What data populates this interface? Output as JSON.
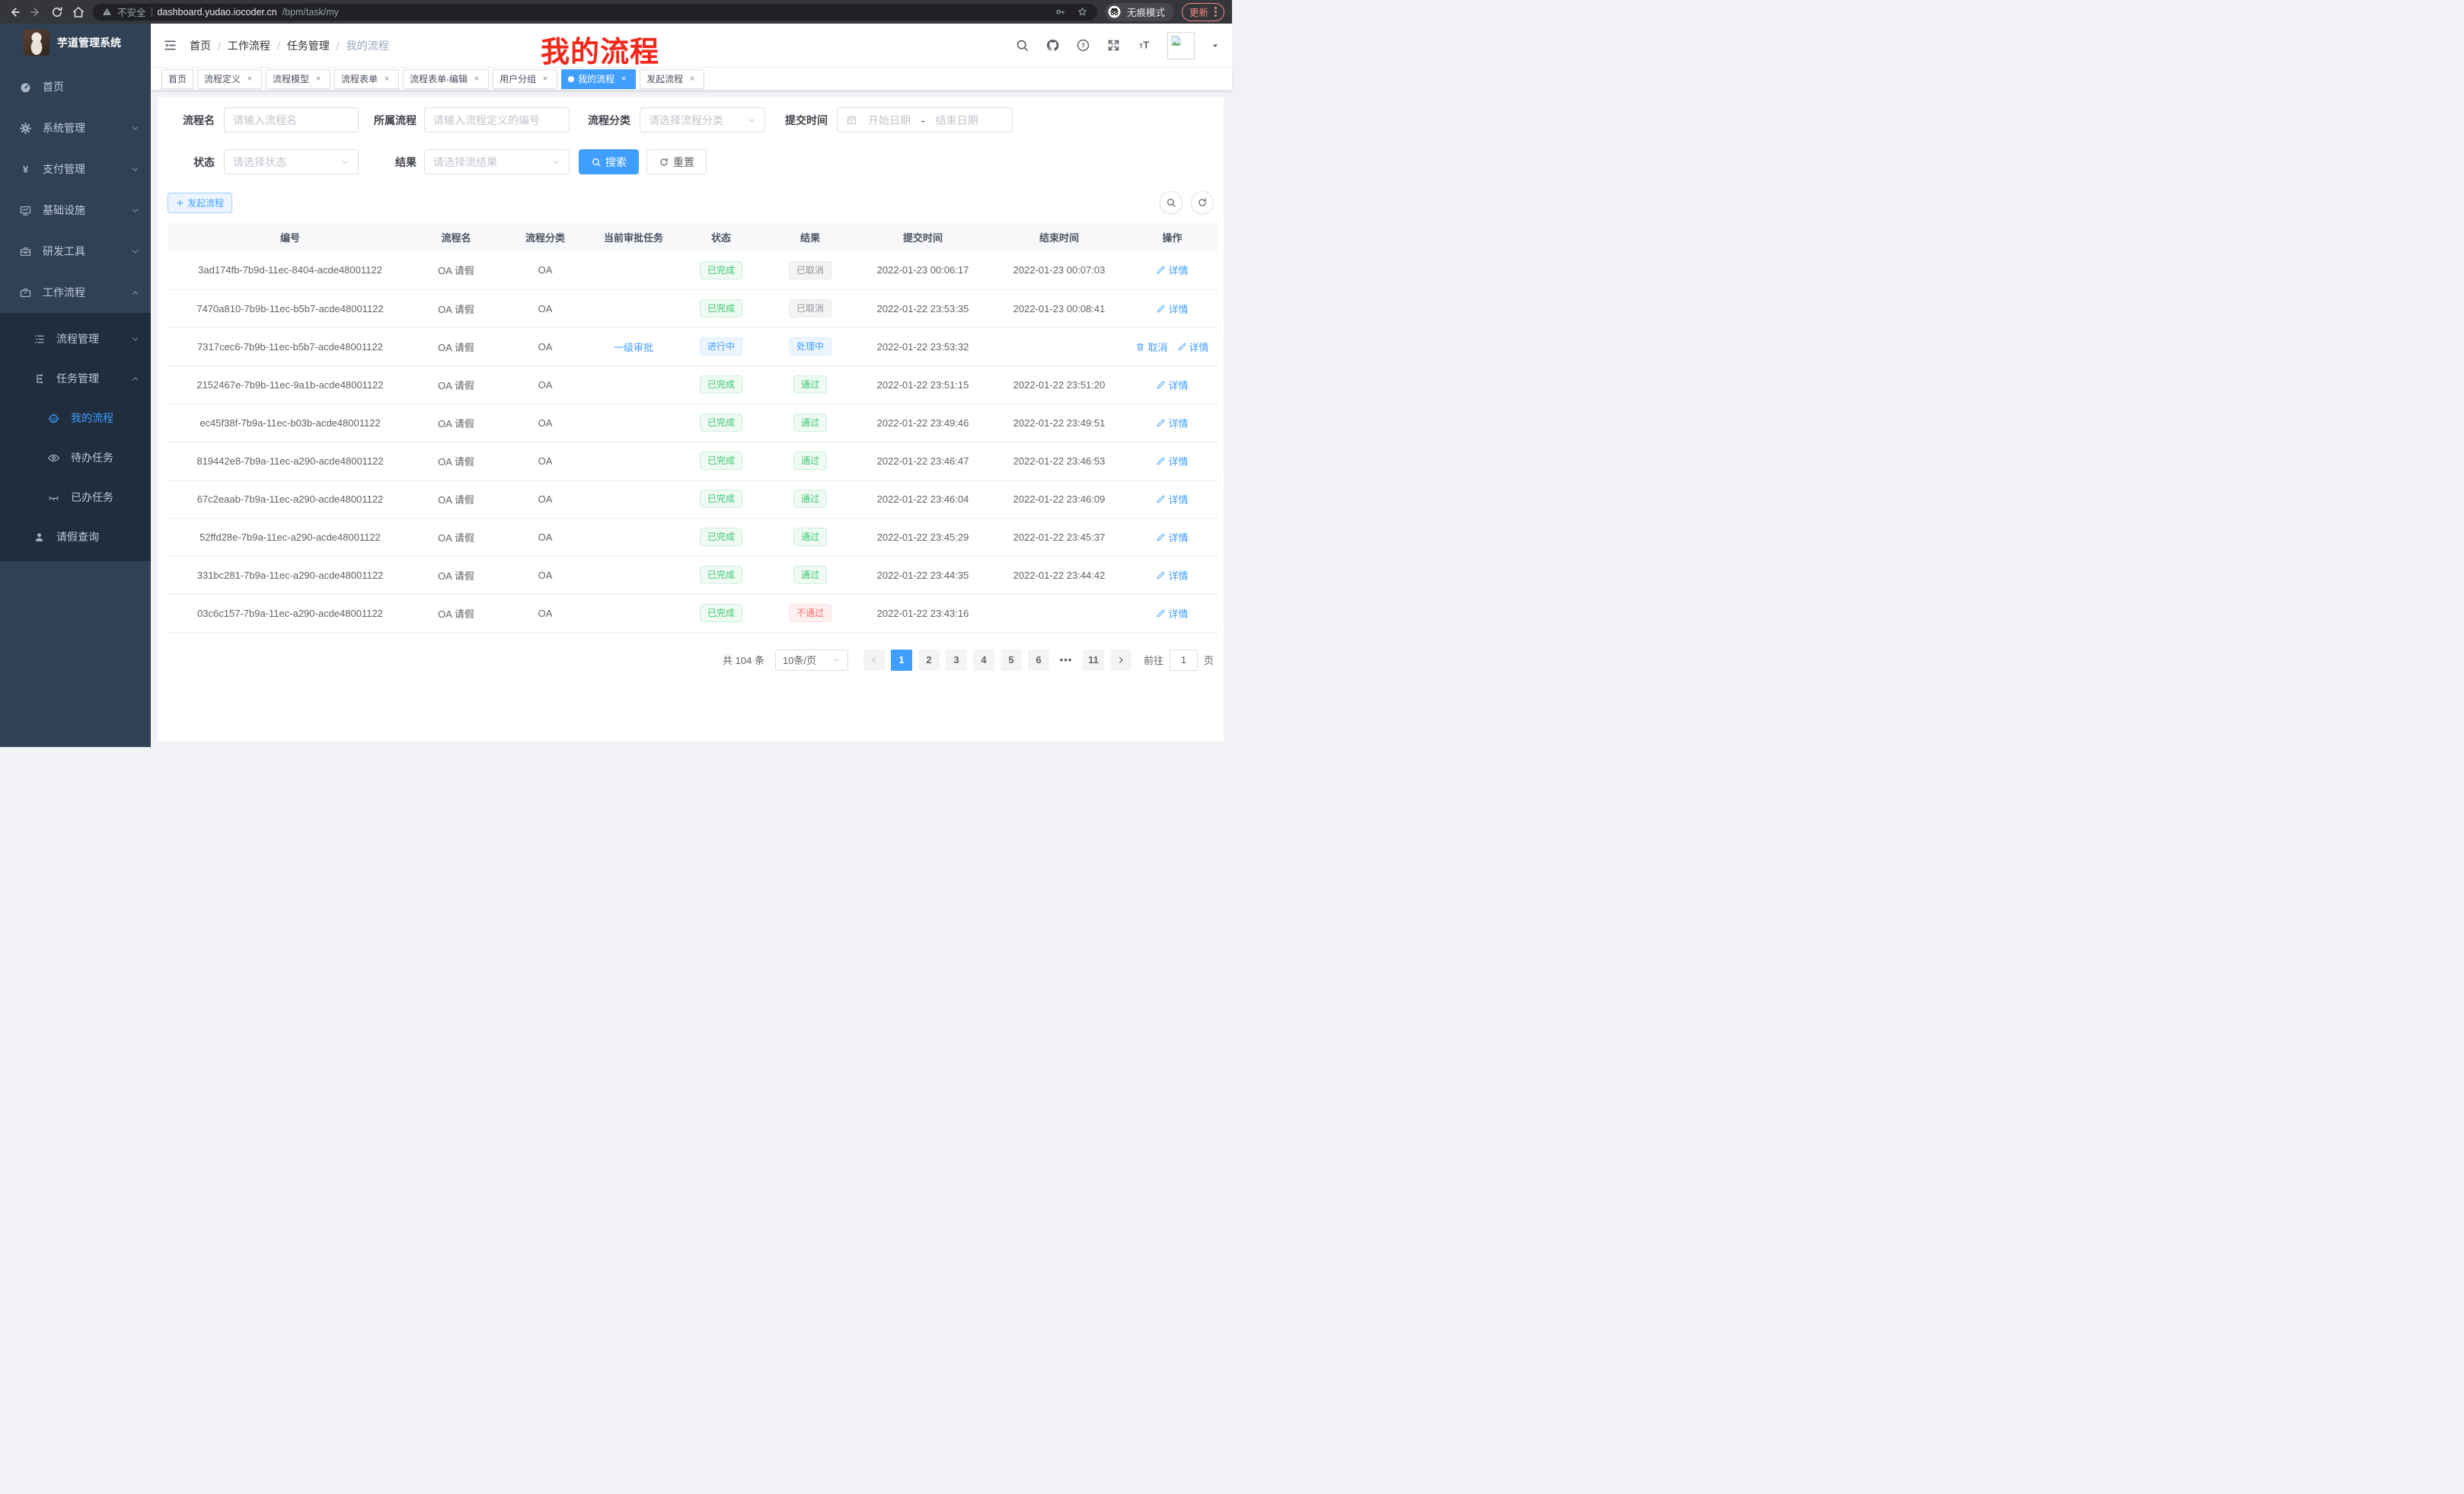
{
  "theme": {
    "primary": "#409eff",
    "success": "#3dc773",
    "danger": "#f56c6c",
    "info": "#909399",
    "sidebar_bg": "#304156",
    "submenu_bg": "#1f2d3d",
    "annotation_red": "#f4271b"
  },
  "browser": {
    "security_label": "不安全",
    "url_host": "dashboard.yudao.iocoder.cn",
    "url_path": "/bpm/task/my",
    "incognito_label": "无痕模式",
    "update_label": "更新"
  },
  "sidebar": {
    "app_title": "芋道管理系统",
    "menu": [
      {
        "label": "首页",
        "icon": "dashboard",
        "level": 0
      },
      {
        "label": "系统管理",
        "icon": "gear",
        "level": 0,
        "chevron": "down"
      },
      {
        "label": "支付管理",
        "icon": "yen",
        "level": 0,
        "chevron": "down"
      },
      {
        "label": "基础设施",
        "icon": "monitor",
        "level": 0,
        "chevron": "down"
      },
      {
        "label": "研发工具",
        "icon": "toolbox",
        "level": 0,
        "chevron": "down"
      },
      {
        "label": "工作流程",
        "icon": "briefcase",
        "level": 0,
        "chevron": "up"
      },
      {
        "label": "流程管理",
        "icon": "list",
        "level": 1,
        "dark": true,
        "chevron": "down"
      },
      {
        "label": "任务管理",
        "icon": "flow",
        "level": 1,
        "dark": true,
        "chevron": "up"
      },
      {
        "label": "我的流程",
        "icon": "robot",
        "level": 2,
        "dark": true,
        "active": true
      },
      {
        "label": "待办任务",
        "icon": "eye",
        "level": 2,
        "dark": true
      },
      {
        "label": "已办任务",
        "icon": "eye-closed",
        "level": 2,
        "dark": true
      },
      {
        "label": "请假查询",
        "icon": "user",
        "level": 1,
        "dark": true
      }
    ]
  },
  "navbar": {
    "breadcrumb": [
      "首页",
      "工作流程",
      "任务管理",
      "我的流程"
    ],
    "annotation": "我的流程"
  },
  "tags": [
    {
      "label": "首页",
      "closable": false,
      "active": false
    },
    {
      "label": "流程定义",
      "closable": true,
      "active": false
    },
    {
      "label": "流程模型",
      "closable": true,
      "active": false
    },
    {
      "label": "流程表单",
      "closable": true,
      "active": false
    },
    {
      "label": "流程表单-编辑",
      "closable": true,
      "active": false
    },
    {
      "label": "用户分组",
      "closable": true,
      "active": false
    },
    {
      "label": "我的流程",
      "closable": true,
      "active": true
    },
    {
      "label": "发起流程",
      "closable": true,
      "active": false
    }
  ],
  "filters": {
    "name_label": "流程名",
    "name_placeholder": "请输入流程名",
    "definition_label": "所属流程",
    "definition_placeholder": "请输入流程定义的编号",
    "category_label": "流程分类",
    "category_placeholder": "请选择流程分类",
    "submit_time_label": "提交时间",
    "start_date_placeholder": "开始日期",
    "date_separator": "-",
    "end_date_placeholder": "结束日期",
    "status_label": "状态",
    "status_placeholder": "请选择状态",
    "result_label": "结果",
    "result_placeholder": "请选择流结果",
    "search_button": "搜索",
    "reset_button": "重置"
  },
  "toolbar": {
    "create_button": "发起流程"
  },
  "table": {
    "headers": [
      "编号",
      "流程名",
      "流程分类",
      "当前审批任务",
      "状态",
      "结果",
      "提交时间",
      "结束时间",
      "操作"
    ],
    "rows": [
      {
        "id": "3ad174fb-7b9d-11ec-8404-acde48001122",
        "name": "OA 请假",
        "category": "OA",
        "task": "",
        "status": {
          "text": "已完成",
          "type": "success"
        },
        "result": {
          "text": "已取消",
          "type": "info"
        },
        "submit_time": "2022-01-23 00:06:17",
        "end_time": "2022-01-23 00:07:03",
        "actions": [
          {
            "icon": "edit",
            "text": "详情"
          }
        ]
      },
      {
        "id": "7470a810-7b9b-11ec-b5b7-acde48001122",
        "name": "OA 请假",
        "category": "OA",
        "task": "",
        "status": {
          "text": "已完成",
          "type": "success"
        },
        "result": {
          "text": "已取消",
          "type": "info"
        },
        "submit_time": "2022-01-22 23:53:35",
        "end_time": "2022-01-23 00:08:41",
        "actions": [
          {
            "icon": "edit",
            "text": "详情"
          }
        ]
      },
      {
        "id": "7317cec6-7b9b-11ec-b5b7-acde48001122",
        "name": "OA 请假",
        "category": "OA",
        "task": "一级审批",
        "status": {
          "text": "进行中",
          "type": "primary"
        },
        "result": {
          "text": "处理中",
          "type": "primary"
        },
        "submit_time": "2022-01-22 23:53:32",
        "end_time": "",
        "actions": [
          {
            "icon": "trash",
            "text": "取消"
          },
          {
            "icon": "edit",
            "text": "详情"
          }
        ]
      },
      {
        "id": "2152467e-7b9b-11ec-9a1b-acde48001122",
        "name": "OA 请假",
        "category": "OA",
        "task": "",
        "status": {
          "text": "已完成",
          "type": "success"
        },
        "result": {
          "text": "通过",
          "type": "success"
        },
        "submit_time": "2022-01-22 23:51:15",
        "end_time": "2022-01-22 23:51:20",
        "actions": [
          {
            "icon": "edit",
            "text": "详情"
          }
        ]
      },
      {
        "id": "ec45f38f-7b9a-11ec-b03b-acde48001122",
        "name": "OA 请假",
        "category": "OA",
        "task": "",
        "status": {
          "text": "已完成",
          "type": "success"
        },
        "result": {
          "text": "通过",
          "type": "success"
        },
        "submit_time": "2022-01-22 23:49:46",
        "end_time": "2022-01-22 23:49:51",
        "actions": [
          {
            "icon": "edit",
            "text": "详情"
          }
        ]
      },
      {
        "id": "819442e8-7b9a-11ec-a290-acde48001122",
        "name": "OA 请假",
        "category": "OA",
        "task": "",
        "status": {
          "text": "已完成",
          "type": "success"
        },
        "result": {
          "text": "通过",
          "type": "success"
        },
        "submit_time": "2022-01-22 23:46:47",
        "end_time": "2022-01-22 23:46:53",
        "actions": [
          {
            "icon": "edit",
            "text": "详情"
          }
        ]
      },
      {
        "id": "67c2eaab-7b9a-11ec-a290-acde48001122",
        "name": "OA 请假",
        "category": "OA",
        "task": "",
        "status": {
          "text": "已完成",
          "type": "success"
        },
        "result": {
          "text": "通过",
          "type": "success"
        },
        "submit_time": "2022-01-22 23:46:04",
        "end_time": "2022-01-22 23:46:09",
        "actions": [
          {
            "icon": "edit",
            "text": "详情"
          }
        ]
      },
      {
        "id": "52ffd28e-7b9a-11ec-a290-acde48001122",
        "name": "OA 请假",
        "category": "OA",
        "task": "",
        "status": {
          "text": "已完成",
          "type": "success"
        },
        "result": {
          "text": "通过",
          "type": "success"
        },
        "submit_time": "2022-01-22 23:45:29",
        "end_time": "2022-01-22 23:45:37",
        "actions": [
          {
            "icon": "edit",
            "text": "详情"
          }
        ]
      },
      {
        "id": "331bc281-7b9a-11ec-a290-acde48001122",
        "name": "OA 请假",
        "category": "OA",
        "task": "",
        "status": {
          "text": "已完成",
          "type": "success"
        },
        "result": {
          "text": "通过",
          "type": "success"
        },
        "submit_time": "2022-01-22 23:44:35",
        "end_time": "2022-01-22 23:44:42",
        "actions": [
          {
            "icon": "edit",
            "text": "详情"
          }
        ]
      },
      {
        "id": "03c6c157-7b9a-11ec-a290-acde48001122",
        "name": "OA 请假",
        "category": "OA",
        "task": "",
        "status": {
          "text": "已完成",
          "type": "success"
        },
        "result": {
          "text": "不通过",
          "type": "danger"
        },
        "submit_time": "2022-01-22 23:43:16",
        "end_time": "",
        "actions": [
          {
            "icon": "edit",
            "text": "详情"
          }
        ]
      }
    ]
  },
  "pagination": {
    "total_text": "共 104 条",
    "page_size": "10条/页",
    "pages": [
      "1",
      "2",
      "3",
      "4",
      "5",
      "6",
      "...",
      "11"
    ],
    "active_page": "1",
    "goto_label": "前往",
    "goto_value": "1",
    "goto_suffix": "页"
  }
}
